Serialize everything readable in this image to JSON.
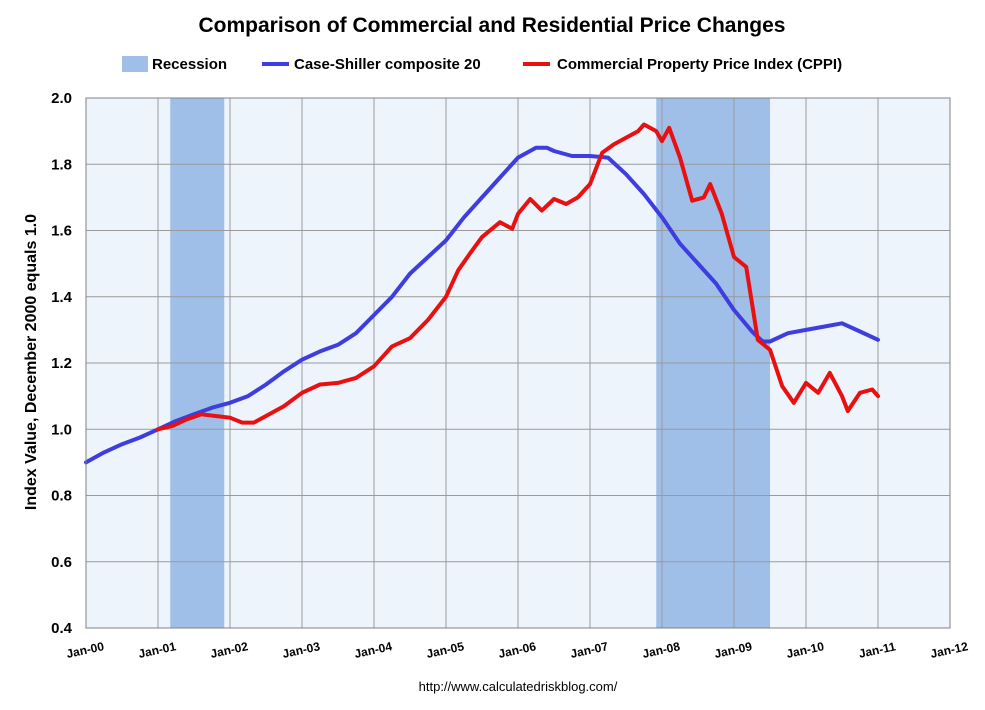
{
  "chart_data": {
    "type": "line",
    "title": "Comparison of Commercial and Residential Price Changes",
    "ylabel": "Index Value, December 2000 equals 1.0",
    "xlabel": "",
    "ylim": [
      0.4,
      2.0
    ],
    "yticks": [
      "0.4",
      "0.6",
      "0.8",
      "1.0",
      "1.2",
      "1.4",
      "1.6",
      "1.8",
      "2.0"
    ],
    "xlim": [
      2000.0,
      2012.0
    ],
    "xticks": [
      {
        "label": "Jan-00",
        "x": 2000.0
      },
      {
        "label": "Jan-01",
        "x": 2001.0
      },
      {
        "label": "Jan-02",
        "x": 2002.0
      },
      {
        "label": "Jan-03",
        "x": 2003.0
      },
      {
        "label": "Jan-04",
        "x": 2004.0
      },
      {
        "label": "Jan-05",
        "x": 2005.0
      },
      {
        "label": "Jan-06",
        "x": 2006.0
      },
      {
        "label": "Jan-07",
        "x": 2007.0
      },
      {
        "label": "Jan-08",
        "x": 2008.0
      },
      {
        "label": "Jan-09",
        "x": 2009.0
      },
      {
        "label": "Jan-10",
        "x": 2010.0
      },
      {
        "label": "Jan-11",
        "x": 2011.0
      },
      {
        "label": "Jan-12",
        "x": 2012.0
      }
    ],
    "grid": true,
    "legend_position": "top",
    "recessions": [
      {
        "start": 2001.17,
        "end": 2001.92
      },
      {
        "start": 2007.92,
        "end": 2009.5
      }
    ],
    "legend": [
      {
        "label": "Recession",
        "kind": "box",
        "color": "#9fbfe8"
      },
      {
        "label": "Case-Shiller composite 20",
        "kind": "line",
        "color": "#3d3de0"
      },
      {
        "label": "Commercial Property Price Index (CPPI)",
        "kind": "line",
        "color": "#e81010"
      }
    ],
    "series": [
      {
        "name": "Case-Shiller composite 20",
        "color": "#3d3de0",
        "points": [
          [
            2000.0,
            0.9
          ],
          [
            2000.25,
            0.93
          ],
          [
            2000.5,
            0.955
          ],
          [
            2000.75,
            0.975
          ],
          [
            2001.0,
            1.0
          ],
          [
            2001.25,
            1.025
          ],
          [
            2001.5,
            1.045
          ],
          [
            2001.75,
            1.065
          ],
          [
            2002.0,
            1.08
          ],
          [
            2002.25,
            1.1
          ],
          [
            2002.5,
            1.135
          ],
          [
            2002.75,
            1.175
          ],
          [
            2003.0,
            1.21
          ],
          [
            2003.25,
            1.235
          ],
          [
            2003.5,
            1.255
          ],
          [
            2003.75,
            1.29
          ],
          [
            2004.0,
            1.345
          ],
          [
            2004.25,
            1.4
          ],
          [
            2004.5,
            1.47
          ],
          [
            2004.75,
            1.52
          ],
          [
            2005.0,
            1.57
          ],
          [
            2005.25,
            1.64
          ],
          [
            2005.5,
            1.7
          ],
          [
            2005.75,
            1.76
          ],
          [
            2006.0,
            1.82
          ],
          [
            2006.25,
            1.85
          ],
          [
            2006.4,
            1.85
          ],
          [
            2006.5,
            1.84
          ],
          [
            2006.75,
            1.825
          ],
          [
            2007.0,
            1.825
          ],
          [
            2007.25,
            1.82
          ],
          [
            2007.5,
            1.77
          ],
          [
            2007.75,
            1.71
          ],
          [
            2008.0,
            1.64
          ],
          [
            2008.25,
            1.56
          ],
          [
            2008.5,
            1.5
          ],
          [
            2008.75,
            1.44
          ],
          [
            2009.0,
            1.36
          ],
          [
            2009.25,
            1.295
          ],
          [
            2009.4,
            1.265
          ],
          [
            2009.5,
            1.265
          ],
          [
            2009.75,
            1.29
          ],
          [
            2010.0,
            1.3
          ],
          [
            2010.25,
            1.31
          ],
          [
            2010.5,
            1.32
          ],
          [
            2010.75,
            1.295
          ],
          [
            2011.0,
            1.27
          ]
        ]
      },
      {
        "name": "Commercial Property Price Index (CPPI)",
        "color": "#e81010",
        "points": [
          [
            2001.0,
            1.0
          ],
          [
            2001.2,
            1.01
          ],
          [
            2001.4,
            1.03
          ],
          [
            2001.6,
            1.045
          ],
          [
            2001.8,
            1.04
          ],
          [
            2002.0,
            1.035
          ],
          [
            2002.17,
            1.02
          ],
          [
            2002.33,
            1.02
          ],
          [
            2002.5,
            1.04
          ],
          [
            2002.75,
            1.07
          ],
          [
            2003.0,
            1.11
          ],
          [
            2003.25,
            1.135
          ],
          [
            2003.5,
            1.14
          ],
          [
            2003.75,
            1.155
          ],
          [
            2004.0,
            1.19
          ],
          [
            2004.25,
            1.25
          ],
          [
            2004.5,
            1.275
          ],
          [
            2004.75,
            1.33
          ],
          [
            2005.0,
            1.4
          ],
          [
            2005.17,
            1.48
          ],
          [
            2005.33,
            1.53
          ],
          [
            2005.5,
            1.58
          ],
          [
            2005.75,
            1.625
          ],
          [
            2005.92,
            1.605
          ],
          [
            2006.0,
            1.65
          ],
          [
            2006.17,
            1.695
          ],
          [
            2006.33,
            1.66
          ],
          [
            2006.5,
            1.695
          ],
          [
            2006.67,
            1.68
          ],
          [
            2006.83,
            1.7
          ],
          [
            2007.0,
            1.74
          ],
          [
            2007.17,
            1.835
          ],
          [
            2007.33,
            1.86
          ],
          [
            2007.5,
            1.88
          ],
          [
            2007.67,
            1.9
          ],
          [
            2007.75,
            1.92
          ],
          [
            2007.92,
            1.9
          ],
          [
            2008.0,
            1.87
          ],
          [
            2008.1,
            1.91
          ],
          [
            2008.25,
            1.82
          ],
          [
            2008.42,
            1.69
          ],
          [
            2008.58,
            1.7
          ],
          [
            2008.67,
            1.74
          ],
          [
            2008.83,
            1.65
          ],
          [
            2009.0,
            1.52
          ],
          [
            2009.17,
            1.49
          ],
          [
            2009.33,
            1.27
          ],
          [
            2009.5,
            1.24
          ],
          [
            2009.67,
            1.13
          ],
          [
            2009.83,
            1.08
          ],
          [
            2010.0,
            1.14
          ],
          [
            2010.17,
            1.11
          ],
          [
            2010.33,
            1.17
          ],
          [
            2010.5,
            1.1
          ],
          [
            2010.58,
            1.055
          ],
          [
            2010.75,
            1.11
          ],
          [
            2010.92,
            1.12
          ],
          [
            2011.0,
            1.1
          ]
        ]
      }
    ]
  },
  "source": "http://www.calculatedriskblog.com/"
}
